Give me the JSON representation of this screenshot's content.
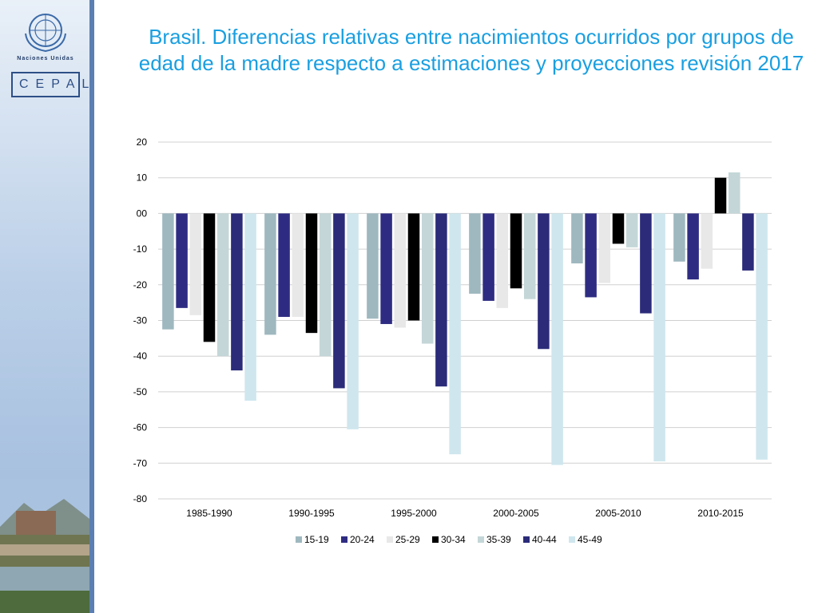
{
  "title": "Brasil. Diferencias relativas entre nacimientos ocurridos por grupos de edad de la madre respecto a estimaciones y proyecciones revisión 2017",
  "logo": {
    "org": "Naciones Unidas",
    "name": "CEPAL"
  },
  "chart_data": {
    "type": "bar",
    "title": "",
    "xlabel": "",
    "ylabel": "",
    "categories": [
      "1985-1990",
      "1990-1995",
      "1995-2000",
      "2000-2005",
      "2005-2010",
      "2010-2015"
    ],
    "ylim": [
      -80,
      20
    ],
    "yticks": [
      20,
      10,
      0,
      -10,
      -20,
      -30,
      -40,
      -50,
      -60,
      -70,
      -80
    ],
    "ytick_labels": [
      "20",
      "10",
      "00",
      "-10",
      "-20",
      "-30",
      "-40",
      "-50",
      "-60",
      "-70",
      "-80"
    ],
    "grid": true,
    "legend_position": "bottom",
    "series": [
      {
        "name": "15-19",
        "color": "#9fb8bf",
        "values": [
          -32.5,
          -34,
          -29.5,
          -22.5,
          -14,
          -13.5
        ]
      },
      {
        "name": "20-24",
        "color": "#2e2c82",
        "values": [
          -26.5,
          -29,
          -31,
          -24.5,
          -23.5,
          -18.5
        ]
      },
      {
        "name": "25-29",
        "color": "#e8e8e8",
        "values": [
          -28.5,
          -29,
          -32,
          -26.5,
          -19.5,
          -15.5
        ]
      },
      {
        "name": "30-34",
        "color": "#000000",
        "values": [
          -36,
          -33.5,
          -30,
          -21,
          -8.5,
          10
        ]
      },
      {
        "name": "35-39",
        "color": "#c4d6d8",
        "values": [
          -40,
          -40,
          -36.5,
          -24,
          -9.5,
          11.5
        ]
      },
      {
        "name": "40-44",
        "color": "#2b2b7a",
        "values": [
          -44,
          -49,
          -48.5,
          -38,
          -28,
          -16
        ]
      },
      {
        "name": "45-49",
        "color": "#cfe6ee",
        "values": [
          -52.5,
          -60.5,
          -67.5,
          -70.5,
          -69.5,
          -69
        ]
      }
    ]
  }
}
